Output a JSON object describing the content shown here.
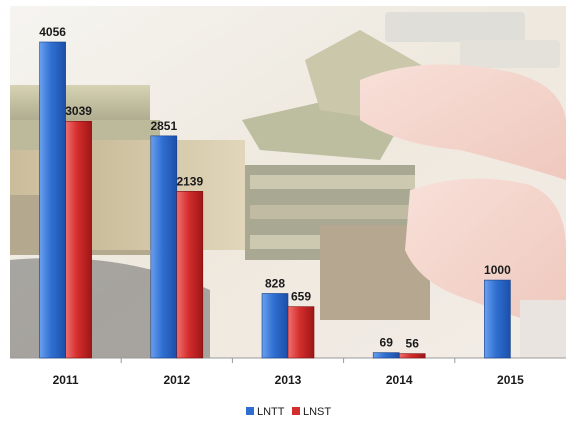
{
  "chart_data": {
    "type": "bar",
    "categories": [
      "2011",
      "2012",
      "2013",
      "2014",
      "2015"
    ],
    "series": [
      {
        "name": "LNTT",
        "values": [
          4056,
          2851,
          828,
          69,
          1000
        ],
        "color": "#2f6fd1"
      },
      {
        "name": "LNST",
        "values": [
          3039,
          2139,
          659,
          56,
          null
        ],
        "color": "#d42d2d"
      }
    ],
    "ylim": [
      0,
      4056
    ],
    "grid": false,
    "legend_position": "bottom-center"
  }
}
